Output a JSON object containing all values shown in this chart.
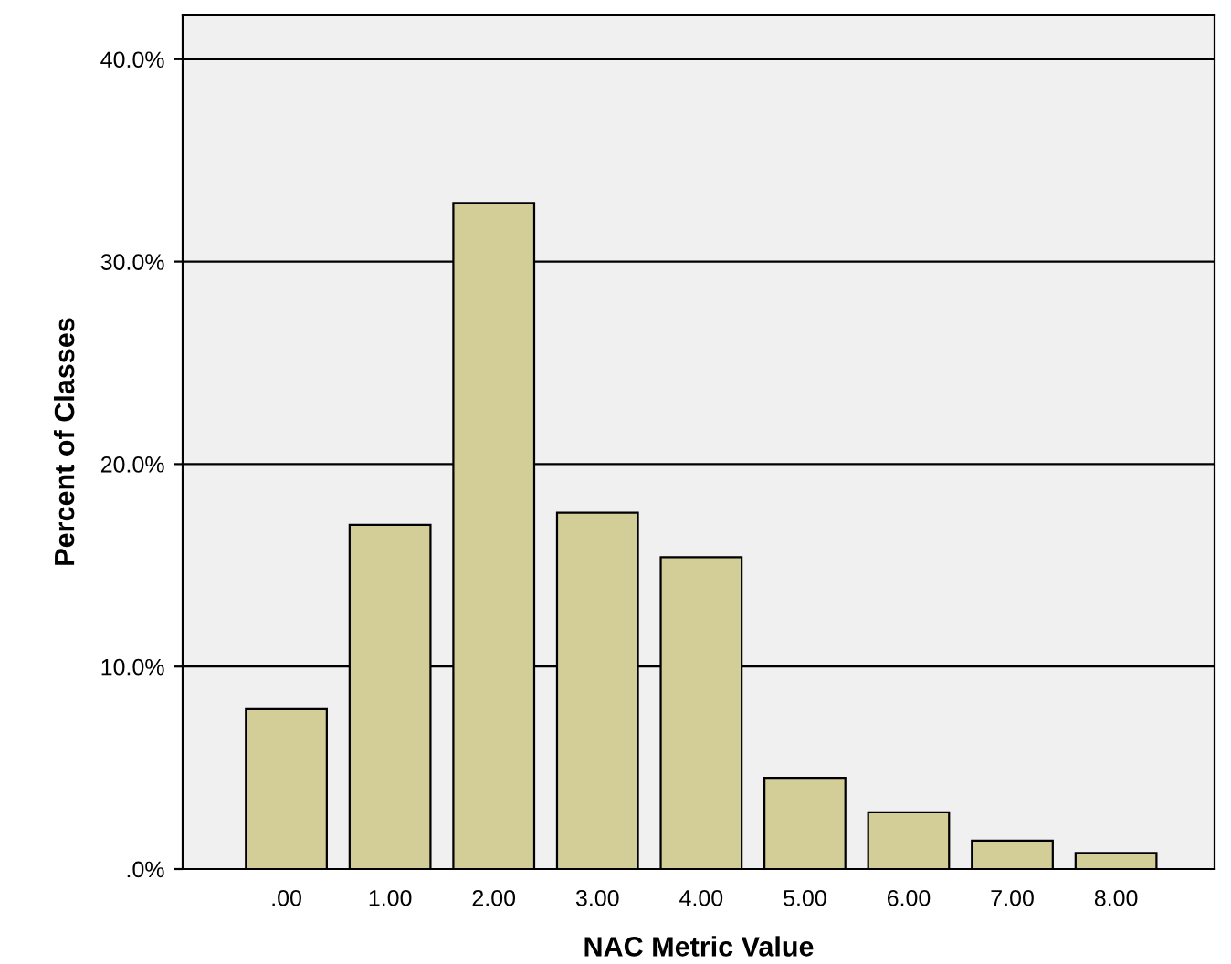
{
  "chart_data": {
    "type": "bar",
    "xlabel": "NAC Metric Value",
    "ylabel": "Percent of Classes",
    "categories": [
      ".00",
      "1.00",
      "2.00",
      "3.00",
      "4.00",
      "5.00",
      "6.00",
      "7.00",
      "8.00"
    ],
    "series": [
      {
        "color": "#d3ce97",
        "values": [
          7.9,
          17.0,
          32.9,
          17.6,
          15.4,
          4.5,
          2.8,
          1.4,
          0.8
        ]
      }
    ],
    "ylim": [
      0,
      42.2
    ],
    "yticks": [
      {
        "value": 0,
        "label": ".0%"
      },
      {
        "value": 10,
        "label": "10.0%"
      },
      {
        "value": 20,
        "label": "20.0%"
      },
      {
        "value": 30,
        "label": "30.0%"
      },
      {
        "value": 40,
        "label": "40.0%"
      }
    ],
    "grid": "y"
  }
}
